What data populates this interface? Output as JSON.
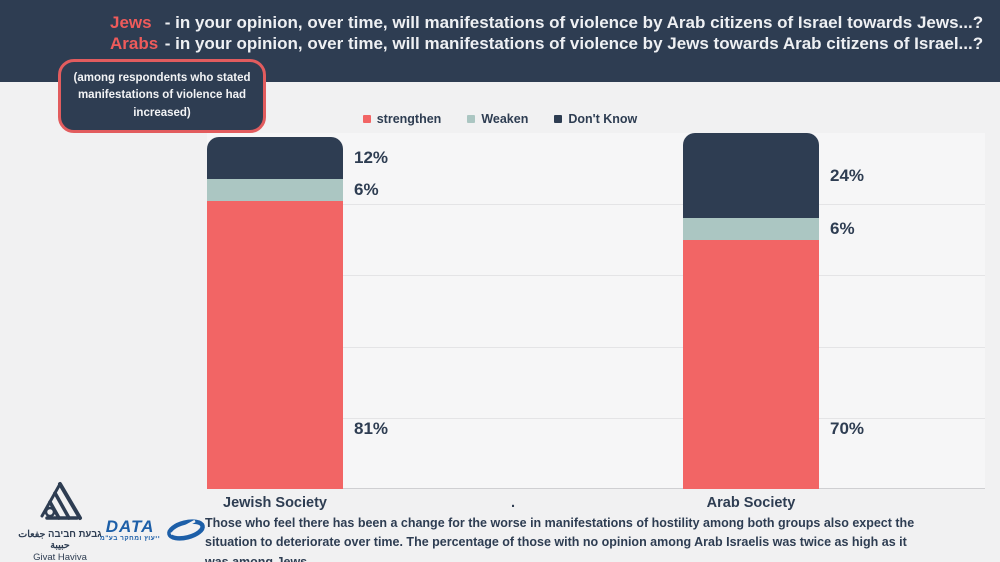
{
  "header": {
    "line1": {
      "highlight": "Jews",
      "rest": " - in your opinion, over time, will manifestations of violence by Arab citizens of Israel towards Jews...?"
    },
    "line2": {
      "highlight": "Arabs",
      "rest": " - in your opinion, over time, will manifestations of violence by Jews towards Arab citizens of Israel...?"
    }
  },
  "callout": {
    "text": "(among respondents who stated manifestations of violence had increased)"
  },
  "legend": [
    {
      "label": "strengthen",
      "color": "#f26565"
    },
    {
      "label": "Weaken",
      "color": "#abc6c2"
    },
    {
      "label": "Don't Know",
      "color": "#2e3d52"
    }
  ],
  "chart_data": {
    "type": "bar",
    "stacked": true,
    "title": "",
    "xlabel": "",
    "ylabel": "",
    "categories": [
      "Jewish Society",
      ".",
      "Arab Society"
    ],
    "series": [
      {
        "name": "strengthen",
        "color": "#f26565",
        "values": [
          81,
          null,
          70
        ]
      },
      {
        "name": "Weaken",
        "color": "#abc6c2",
        "values": [
          6,
          null,
          6
        ]
      },
      {
        "name": "Don't Know",
        "color": "#2e3d52",
        "values": [
          12,
          null,
          24
        ]
      }
    ],
    "ylim": [
      0,
      100
    ],
    "yticks": [
      0,
      20,
      40,
      60,
      80,
      100
    ],
    "grid": true,
    "legend_position": "top",
    "data_label_format": "percent"
  },
  "footer": {
    "note": "Those who feel there has been a change for the worse in manifestations of hostility among both groups also expect the situation to deteriorate over time. The percentage of those with no opinion among Arab Israelis was twice as high as it was among Jews",
    "logos": {
      "givat_haviva": {
        "native": "גבעת חביבה جفعات حبيبة",
        "english": "Givat Haviva"
      },
      "data": {
        "name": "DATA",
        "subtitle": "ייעוץ ומחקר בע\"מ"
      }
    }
  },
  "colors": {
    "header_bg": "#2e3d52",
    "accent_red": "#ef5b5b",
    "bar_red": "#f26565",
    "bar_sage": "#abc6c2",
    "bar_navy": "#2e3d52",
    "page_bg": "#f1f1f2",
    "plot_bg": "#f6f6f7",
    "logo_blue": "#1d5fa8"
  }
}
